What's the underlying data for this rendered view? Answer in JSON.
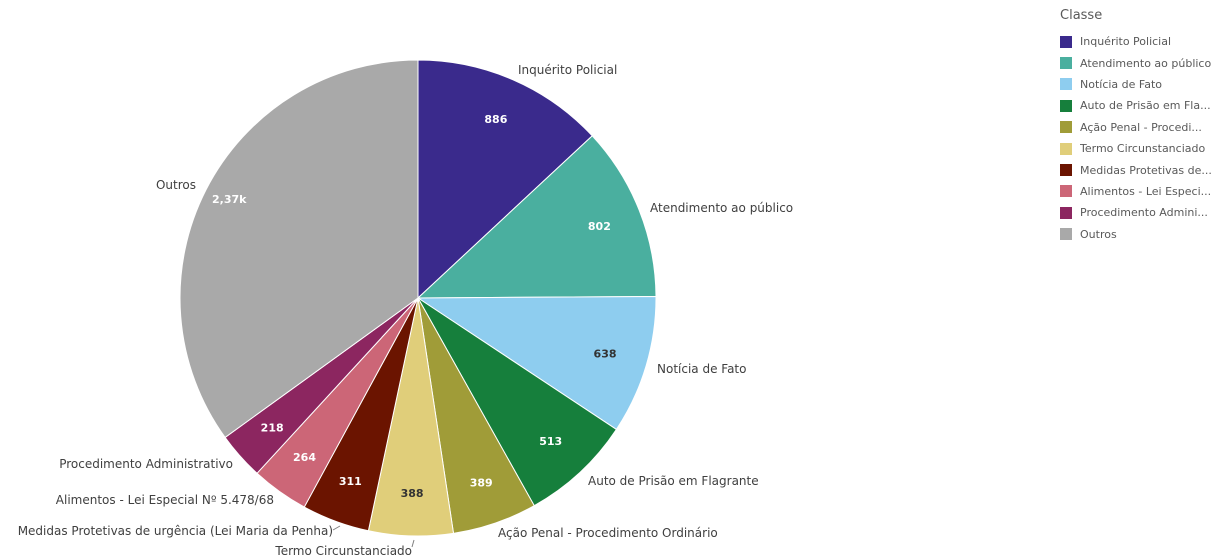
{
  "chart_data": {
    "type": "pie",
    "legend_title": "Classe",
    "legend_position": "top-right",
    "slices": [
      {
        "label": "Inquérito Policial",
        "value": 886,
        "value_label": "886",
        "color": "#3a2a8c",
        "legend_label": "Inquérito Policial",
        "value_color": "#ffffff"
      },
      {
        "label": "Atendimento ao público",
        "value": 802,
        "value_label": "802",
        "color": "#4aaf9f",
        "legend_label": "Atendimento ao público",
        "value_color": "#ffffff"
      },
      {
        "label": "Notícia de Fato",
        "value": 638,
        "value_label": "638",
        "color": "#8ecdef",
        "legend_label": "Notícia de Fato",
        "value_color": "#333333"
      },
      {
        "label": "Auto de Prisão em Flagrante",
        "value": 513,
        "value_label": "513",
        "color": "#167f3c",
        "legend_label": "Auto de Prisão em Fla...",
        "value_color": "#ffffff"
      },
      {
        "label": "Ação Penal - Procedimento Ordinário",
        "value": 389,
        "value_label": "389",
        "color": "#a09c38",
        "legend_label": "Ação Penal - Procedi...",
        "value_color": "#ffffff"
      },
      {
        "label": "Termo Circunstanciado",
        "value": 388,
        "value_label": "388",
        "color": "#e0ce7a",
        "legend_label": "Termo Circunstanciado",
        "value_color": "#333333"
      },
      {
        "label": "Medidas Protetivas de urgência (Lei Maria da Penha)",
        "value": 311,
        "value_label": "311",
        "color": "#6b1400",
        "legend_label": "Medidas Protetivas de...",
        "value_color": "#ffffff"
      },
      {
        "label": "Alimentos - Lei Especial Nº 5.478/68",
        "value": 264,
        "value_label": "264",
        "color": "#cc6677",
        "legend_label": "Alimentos - Lei Especi...",
        "value_color": "#ffffff"
      },
      {
        "label": "Procedimento Administrativo",
        "value": 218,
        "value_label": "218",
        "color": "#8c2660",
        "legend_label": "Procedimento Admini...",
        "value_color": "#ffffff"
      },
      {
        "label": "Outros",
        "value": 2370,
        "value_label": "2,37k",
        "color": "#a9a9a9",
        "legend_label": "Outros",
        "value_color": "#ffffff"
      }
    ]
  }
}
